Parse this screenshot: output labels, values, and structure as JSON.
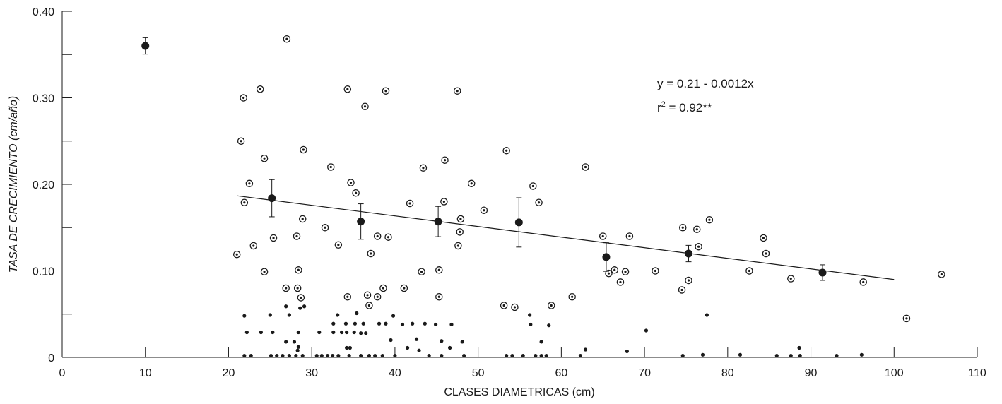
{
  "chart_data": {
    "type": "scatter",
    "title": "",
    "xlabel": "CLASES DIAMETRICAS (cm)",
    "ylabel": "TASA DE CRECIMIENTO (cm/año)",
    "xlim": [
      0,
      110
    ],
    "ylim": [
      0,
      0.4
    ],
    "x_ticks": [
      0,
      10,
      20,
      30,
      40,
      50,
      60,
      70,
      80,
      90,
      100,
      110
    ],
    "x_tick_labels": [
      "0",
      "10",
      "20",
      "30",
      "40",
      "50",
      "60",
      "70",
      "80",
      "90",
      "100",
      "110"
    ],
    "y_ticks": [
      0,
      0.1,
      0.2,
      0.3,
      0.4
    ],
    "y_tick_labels": [
      "0",
      "0.10",
      "0.20",
      "0.30",
      "0.40"
    ],
    "grid": false,
    "annotations": {
      "equation": "y = 0.21 - 0.0012x",
      "r2_prefix": "r",
      "r2_sup": "2",
      "r2_value": " = 0.92**"
    },
    "trend_line": {
      "x": [
        21,
        100
      ],
      "y": [
        0.1868,
        0.09
      ]
    },
    "series": [
      {
        "marker": "circle-dot",
        "points": [
          [
            27,
            0.368
          ],
          [
            21.8,
            0.3
          ],
          [
            23.8,
            0.31
          ],
          [
            21.5,
            0.25
          ],
          [
            34.3,
            0.31
          ],
          [
            38.9,
            0.308
          ],
          [
            47.5,
            0.308
          ],
          [
            36.4,
            0.29
          ],
          [
            24.3,
            0.23
          ],
          [
            29,
            0.24
          ],
          [
            32.3,
            0.22
          ],
          [
            43.4,
            0.219
          ],
          [
            46,
            0.228
          ],
          [
            53.4,
            0.239
          ],
          [
            62.9,
            0.22
          ],
          [
            22.5,
            0.201
          ],
          [
            34.7,
            0.202
          ],
          [
            49.2,
            0.201
          ],
          [
            56.6,
            0.198
          ],
          [
            21.9,
            0.179
          ],
          [
            35.3,
            0.19
          ],
          [
            41.8,
            0.178
          ],
          [
            45.9,
            0.18
          ],
          [
            50.7,
            0.17
          ],
          [
            57.3,
            0.179
          ],
          [
            25.4,
            0.138
          ],
          [
            28.9,
            0.16
          ],
          [
            31.6,
            0.15
          ],
          [
            28.2,
            0.14
          ],
          [
            33.2,
            0.13
          ],
          [
            37.9,
            0.14
          ],
          [
            39.2,
            0.139
          ],
          [
            47.9,
            0.16
          ],
          [
            47.8,
            0.145
          ],
          [
            47.6,
            0.129
          ],
          [
            21,
            0.119
          ],
          [
            23,
            0.129
          ],
          [
            37.1,
            0.12
          ],
          [
            65,
            0.14
          ],
          [
            68.2,
            0.14
          ],
          [
            74.6,
            0.15
          ],
          [
            76.3,
            0.148
          ],
          [
            77.8,
            0.159
          ],
          [
            84.3,
            0.138
          ],
          [
            24.3,
            0.099
          ],
          [
            28.4,
            0.101
          ],
          [
            43.2,
            0.099
          ],
          [
            45.3,
            0.101
          ],
          [
            26.9,
            0.08
          ],
          [
            28.3,
            0.08
          ],
          [
            28.7,
            0.069
          ],
          [
            34.3,
            0.07
          ],
          [
            36.7,
            0.072
          ],
          [
            38.6,
            0.08
          ],
          [
            36.9,
            0.06
          ],
          [
            37.9,
            0.07
          ],
          [
            41.1,
            0.08
          ],
          [
            45.3,
            0.07
          ],
          [
            53.1,
            0.06
          ],
          [
            54.4,
            0.058
          ],
          [
            58.8,
            0.06
          ],
          [
            61.3,
            0.07
          ],
          [
            65.7,
            0.097
          ],
          [
            66.4,
            0.101
          ],
          [
            67.7,
            0.099
          ],
          [
            67.1,
            0.087
          ],
          [
            71.3,
            0.1
          ],
          [
            74.5,
            0.078
          ],
          [
            75.3,
            0.089
          ],
          [
            76.5,
            0.128
          ],
          [
            82.6,
            0.1
          ],
          [
            84.6,
            0.12
          ],
          [
            87.6,
            0.091
          ],
          [
            96.3,
            0.087
          ],
          [
            101.5,
            0.045
          ],
          [
            105.7,
            0.096
          ]
        ]
      },
      {
        "marker": "small-dot",
        "points": [
          [
            21.9,
            0.048
          ],
          [
            22.2,
            0.029
          ],
          [
            21.9,
            0.002
          ],
          [
            22.7,
            0.002
          ],
          [
            23.9,
            0.029
          ],
          [
            25,
            0.049
          ],
          [
            25.3,
            0.029
          ],
          [
            25.1,
            0.002
          ],
          [
            25.8,
            0.002
          ],
          [
            26.5,
            0.002
          ],
          [
            26.9,
            0.059
          ],
          [
            27.3,
            0.049
          ],
          [
            26.9,
            0.018
          ],
          [
            27.3,
            0.002
          ],
          [
            27.9,
            0.018
          ],
          [
            28.1,
            0.002
          ],
          [
            28.3,
            0.008
          ],
          [
            28.4,
            0.012
          ],
          [
            28.4,
            0.029
          ],
          [
            28.6,
            0.057
          ],
          [
            29.1,
            0.059
          ],
          [
            28.9,
            0.002
          ],
          [
            30.6,
            0.002
          ],
          [
            30.9,
            0.029
          ],
          [
            31.2,
            0.002
          ],
          [
            31.9,
            0.002
          ],
          [
            32.5,
            0.002
          ],
          [
            32.6,
            0.029
          ],
          [
            32.6,
            0.039
          ],
          [
            33.1,
            0.049
          ],
          [
            33.6,
            0.029
          ],
          [
            33.2,
            0.002
          ],
          [
            34.1,
            0.039
          ],
          [
            34.2,
            0.029
          ],
          [
            34.5,
            0.002
          ],
          [
            34.2,
            0.011
          ],
          [
            34.6,
            0.011
          ],
          [
            35.2,
            0.039
          ],
          [
            35.4,
            0.051
          ],
          [
            35.1,
            0.029
          ],
          [
            35.9,
            0.028
          ],
          [
            36.2,
            0.039
          ],
          [
            36.5,
            0.028
          ],
          [
            35.9,
            0.002
          ],
          [
            36.9,
            0.002
          ],
          [
            37.6,
            0.002
          ],
          [
            38.1,
            0.039
          ],
          [
            38.5,
            0.002
          ],
          [
            38.9,
            0.039
          ],
          [
            39.5,
            0.02
          ],
          [
            39.8,
            0.048
          ],
          [
            40,
            0.002
          ],
          [
            40.9,
            0.038
          ],
          [
            41.5,
            0.011
          ],
          [
            42.1,
            0.039
          ],
          [
            42.6,
            0.021
          ],
          [
            42.9,
            0.008
          ],
          [
            43.6,
            0.039
          ],
          [
            44.1,
            0.002
          ],
          [
            44.9,
            0.038
          ],
          [
            45.6,
            0.019
          ],
          [
            45.6,
            0.002
          ],
          [
            46.6,
            0.011
          ],
          [
            46.8,
            0.038
          ],
          [
            48.1,
            0.018
          ],
          [
            48.3,
            0.002
          ],
          [
            53.4,
            0.002
          ],
          [
            54.1,
            0.002
          ],
          [
            55.4,
            0.002
          ],
          [
            56.2,
            0.049
          ],
          [
            56.3,
            0.038
          ],
          [
            56.9,
            0.002
          ],
          [
            57.6,
            0.018
          ],
          [
            57.6,
            0.002
          ],
          [
            58.2,
            0.002
          ],
          [
            58.5,
            0.037
          ],
          [
            62.3,
            0.002
          ],
          [
            62.9,
            0.009
          ],
          [
            67.9,
            0.007
          ],
          [
            70.2,
            0.031
          ],
          [
            74.6,
            0.002
          ],
          [
            77,
            0.003
          ],
          [
            77.5,
            0.049
          ],
          [
            81.5,
            0.003
          ],
          [
            85.9,
            0.002
          ],
          [
            87.6,
            0.002
          ],
          [
            88.6,
            0.011
          ],
          [
            88.7,
            0.002
          ],
          [
            93.1,
            0.002
          ],
          [
            96.1,
            0.003
          ]
        ]
      },
      {
        "marker": "filled-circle-errorbar",
        "points": [
          [
            10,
            0.36,
            0.0095
          ],
          [
            25.2,
            0.184,
            0.0215
          ],
          [
            35.9,
            0.157,
            0.0205
          ],
          [
            45.2,
            0.157,
            0.0175
          ],
          [
            54.9,
            0.156,
            0.0285
          ],
          [
            65.4,
            0.116,
            0.0165
          ],
          [
            75.3,
            0.12,
            0.0095
          ],
          [
            91.4,
            0.098,
            0.009
          ]
        ]
      }
    ]
  }
}
